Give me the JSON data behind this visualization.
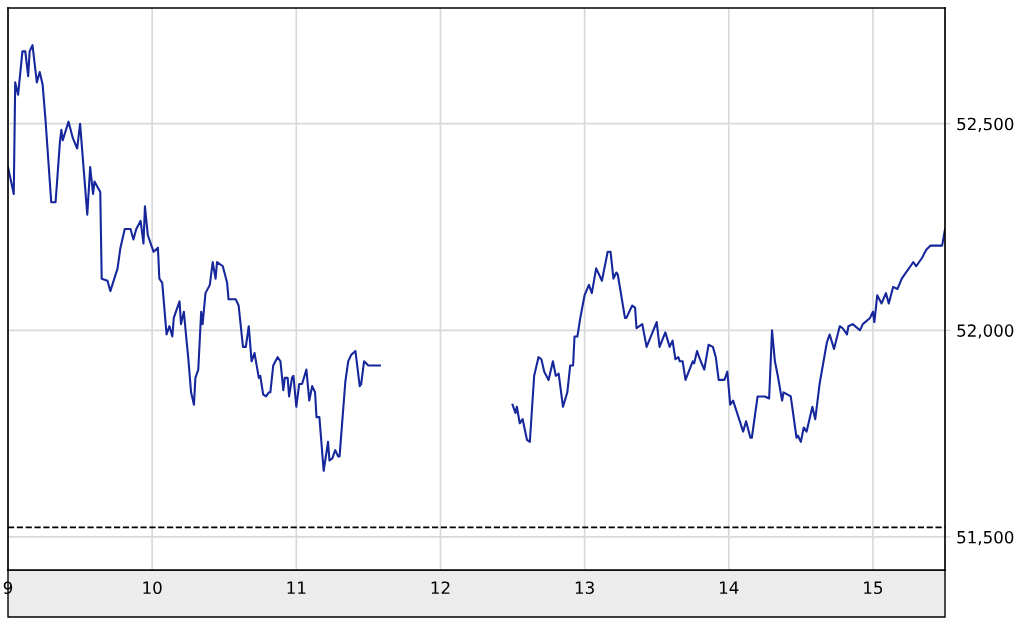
{
  "chart_data": {
    "type": "line",
    "grid": true,
    "marker": "none",
    "line_style": "solid",
    "xlim": [
      9,
      15.5
    ],
    "xticks": [
      9,
      10,
      11,
      12,
      13,
      14,
      15
    ],
    "ylim": [
      51420,
      52780
    ],
    "yticks": [
      {
        "value": 51500,
        "label": "51,500"
      },
      {
        "value": 52000,
        "label": "52,000"
      },
      {
        "value": 52500,
        "label": "52,500"
      }
    ],
    "ref_lines": [
      {
        "axis": "y",
        "value": 51523,
        "color": "#000000",
        "line_style": "dashed"
      }
    ],
    "series": [
      {
        "color": "#15279b",
        "x": [
          9.0,
          9.04,
          9.05,
          9.07,
          9.1,
          9.12,
          9.14,
          9.15,
          9.17,
          9.2,
          9.22,
          9.24,
          9.26,
          9.3,
          9.33,
          9.36,
          9.37,
          9.38,
          9.42,
          9.45,
          9.48,
          9.5,
          9.55,
          9.57,
          9.59,
          9.6,
          9.64,
          9.65,
          9.69,
          9.71,
          9.76,
          9.78,
          9.81,
          9.85,
          9.87,
          9.89,
          9.92,
          9.94,
          9.95,
          9.97,
          10.01,
          10.04,
          10.05,
          10.07,
          10.1,
          10.12,
          10.14,
          10.15,
          10.19,
          10.2,
          10.22,
          10.24,
          10.25,
          10.27,
          10.29,
          10.3,
          10.32,
          10.34,
          10.35,
          10.37,
          10.4,
          10.42,
          10.44,
          10.45,
          10.49,
          10.52,
          10.53,
          10.58,
          10.6,
          10.63,
          10.65,
          10.67,
          10.69,
          10.71,
          10.74,
          10.75,
          10.77,
          10.79,
          10.81,
          10.82,
          10.84,
          10.87,
          10.89,
          10.91,
          10.92,
          10.94,
          10.95,
          10.97,
          10.98,
          11.0,
          11.02,
          11.04,
          11.07,
          11.09,
          11.11,
          11.13,
          11.14,
          11.16,
          11.19,
          11.22,
          11.23,
          11.25,
          11.27,
          11.29,
          11.3,
          11.34,
          11.36,
          11.38,
          11.41,
          11.44,
          11.45,
          11.47,
          11.5,
          11.58,
          12.0,
          12.5,
          12.52,
          12.53,
          12.55,
          12.57,
          12.6,
          12.62,
          12.65,
          12.68,
          12.7,
          12.72,
          12.75,
          12.78,
          12.8,
          12.82,
          12.85,
          12.88,
          12.9,
          12.92,
          12.93,
          12.95,
          12.97,
          13.0,
          13.03,
          13.05,
          13.08,
          13.12,
          13.16,
          13.18,
          13.2,
          13.22,
          13.23,
          13.28,
          13.29,
          13.33,
          13.35,
          13.36,
          13.4,
          13.43,
          13.5,
          13.52,
          13.56,
          13.59,
          13.61,
          13.63,
          13.65,
          13.66,
          13.68,
          13.7,
          13.75,
          13.76,
          13.78,
          13.8,
          13.83,
          13.86,
          13.89,
          13.91,
          13.93,
          13.97,
          13.99,
          14.01,
          14.03,
          14.1,
          14.12,
          14.15,
          14.16,
          14.2,
          14.23,
          14.25,
          14.28,
          14.3,
          14.32,
          14.34,
          14.37,
          14.38,
          14.43,
          14.47,
          14.48,
          14.5,
          14.52,
          14.54,
          14.58,
          14.6,
          14.63,
          14.68,
          14.7,
          14.73,
          14.77,
          14.79,
          14.82,
          14.83,
          14.86,
          14.91,
          14.93,
          14.98,
          15.0,
          15.01,
          15.03,
          15.06,
          15.09,
          15.11,
          15.14,
          15.17,
          15.2,
          15.23,
          15.26,
          15.28,
          15.3,
          15.34,
          15.37,
          15.4,
          15.48,
          15.5
        ],
        "values": [
          52395,
          52330,
          52600,
          52570,
          52675,
          52675,
          52615,
          52675,
          52690,
          52600,
          52625,
          52595,
          52510,
          52310,
          52310,
          52455,
          52485,
          52460,
          52505,
          52465,
          52440,
          52500,
          52280,
          52395,
          52330,
          52360,
          52335,
          52125,
          52120,
          52095,
          52150,
          52200,
          52245,
          52245,
          52220,
          52245,
          52265,
          52210,
          52300,
          52230,
          52190,
          52200,
          52125,
          52115,
          51990,
          52010,
          51985,
          52030,
          52070,
          52015,
          52045,
          51970,
          51935,
          51850,
          51820,
          51885,
          51905,
          52045,
          52015,
          52090,
          52110,
          52165,
          52125,
          52165,
          52155,
          52115,
          52075,
          52075,
          52060,
          51960,
          51960,
          52010,
          51925,
          51945,
          51885,
          51890,
          51845,
          51840,
          51850,
          51850,
          51915,
          51935,
          51925,
          51855,
          51885,
          51885,
          51840,
          51885,
          51890,
          51815,
          51870,
          51870,
          51905,
          51830,
          51865,
          51850,
          51790,
          51790,
          51660,
          51730,
          51685,
          51690,
          51710,
          51695,
          51695,
          51875,
          51925,
          51940,
          51950,
          51865,
          51870,
          51925,
          51915,
          51915,
          null,
          51820,
          51800,
          51815,
          51775,
          51785,
          51735,
          51730,
          51890,
          51935,
          51930,
          51900,
          51880,
          51925,
          51890,
          51895,
          51815,
          51850,
          51915,
          51915,
          51985,
          51985,
          52030,
          52085,
          52110,
          52090,
          52150,
          52120,
          52190,
          52190,
          52125,
          52140,
          52135,
          52030,
          52030,
          52060,
          52055,
          52005,
          52015,
          51960,
          52020,
          51960,
          51995,
          51960,
          51975,
          51930,
          51935,
          51925,
          51925,
          51880,
          51925,
          51920,
          51950,
          51930,
          51905,
          51965,
          51960,
          51935,
          51880,
          51880,
          51900,
          51820,
          51830,
          51755,
          51780,
          51740,
          51740,
          51840,
          51840,
          51840,
          51835,
          52000,
          51925,
          51890,
          51830,
          51850,
          51840,
          51740,
          51745,
          51730,
          51765,
          51755,
          51815,
          51785,
          51870,
          51970,
          51990,
          51955,
          52010,
          52005,
          51990,
          52010,
          52015,
          52000,
          52015,
          52030,
          52045,
          52020,
          52085,
          52065,
          52090,
          52065,
          52105,
          52100,
          52125,
          52140,
          52155,
          52165,
          52155,
          52175,
          52195,
          52205,
          52205,
          52245
        ]
      }
    ]
  }
}
